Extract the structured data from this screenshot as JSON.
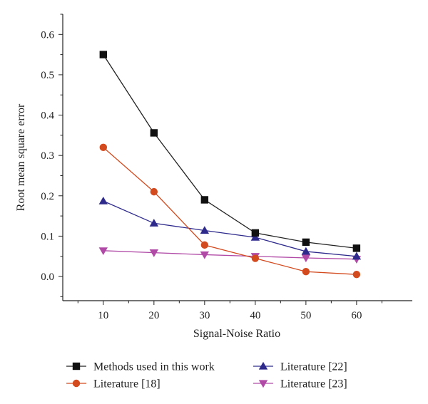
{
  "chart_data": {
    "type": "line",
    "title": "",
    "xlabel": "Signal-Noise Ratio",
    "ylabel": "Root mean square error",
    "x": [
      10,
      20,
      30,
      40,
      50,
      60
    ],
    "xticks": [
      "10",
      "20",
      "30",
      "40",
      "50",
      "60"
    ],
    "yticks": [
      "0.0",
      "0.1",
      "0.2",
      "0.3",
      "0.4",
      "0.5",
      "0.6"
    ],
    "xlim": [
      2,
      71
    ],
    "ylim": [
      -0.06,
      0.65
    ],
    "grid": false,
    "legend_position": "bottom",
    "series": [
      {
        "name": "Methods used in this work",
        "marker": "square",
        "color": "#111111",
        "line_color": "#222222",
        "values": [
          0.55,
          0.356,
          0.19,
          0.108,
          0.085,
          0.07
        ]
      },
      {
        "name": "Literature [18]",
        "marker": "circle",
        "color": "#d24a1e",
        "line_color": "#d24a1e",
        "values": [
          0.32,
          0.21,
          0.078,
          0.045,
          0.012,
          0.005
        ]
      },
      {
        "name": "Literature [22]",
        "marker": "triangle-up",
        "color": "#2e2a8c",
        "line_color": "#2e2a8c",
        "values": [
          0.187,
          0.132,
          0.114,
          0.097,
          0.062,
          0.05
        ]
      },
      {
        "name": "Literature [23]",
        "marker": "triangle-down",
        "color": "#b04aa6",
        "line_color": "#b04aa6",
        "values": [
          0.064,
          0.059,
          0.054,
          0.05,
          0.046,
          0.043
        ]
      }
    ]
  }
}
